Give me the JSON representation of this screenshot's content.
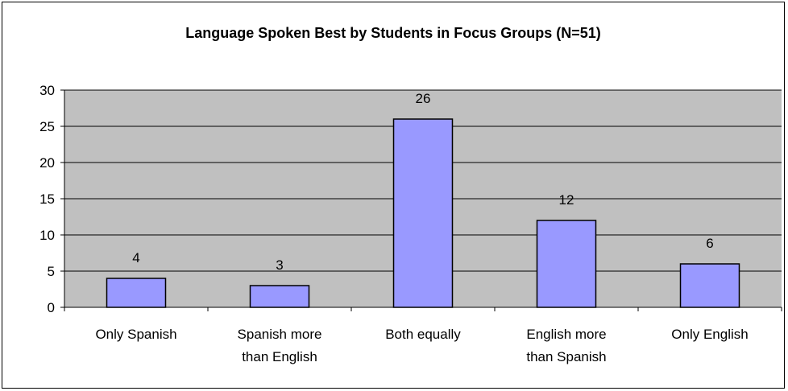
{
  "chart_data": {
    "type": "bar",
    "title": "Language Spoken Best by Students in Focus Groups (N=51)",
    "xlabel": "",
    "ylabel": "",
    "categories": [
      [
        "Only Spanish"
      ],
      [
        "Spanish more",
        "than English"
      ],
      [
        "Both equally"
      ],
      [
        "English more",
        "than Spanish"
      ],
      [
        "Only English"
      ]
    ],
    "values": [
      4,
      3,
      26,
      12,
      6
    ],
    "data_labels": [
      "4",
      "3",
      "26",
      "12",
      "6"
    ],
    "ylim": [
      0,
      30
    ],
    "yticks": [
      0,
      5,
      10,
      15,
      20,
      25,
      30
    ],
    "grid": "horizontal",
    "legend": "none",
    "colors": {
      "bar": "#9999ff",
      "plot_bg": "#c0c0c0",
      "grid": "#000000",
      "frame": "#000000"
    }
  }
}
